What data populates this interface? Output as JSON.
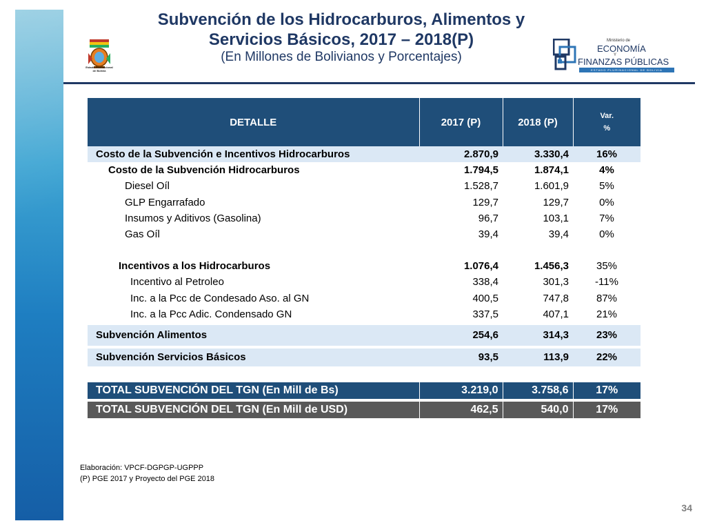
{
  "header": {
    "title_line1": "Subvención de los Hidrocarburos, Alimentos y",
    "title_line2": "Servicios Básicos, 2017 – 2018(P)",
    "subtitle": "(En Millones de Bolivianos y Porcentajes)",
    "emblem_caption": "Estado Plurinacional de Bolivia"
  },
  "logo": {
    "line1": "Ministerio de",
    "line2": "ECONOMÍA",
    "line3": "Y",
    "line4": "FINANZAS PÚBLICAS",
    "line5": "ESTADO PLURINACIONAL DE BOLIVIA"
  },
  "table": {
    "columns": [
      "DETALLE",
      "2017 (P)",
      "2018 (P)",
      "Var.",
      "%"
    ],
    "rows": [
      {
        "label": "Costo de la Subvención e Incentivos Hidrocarburos",
        "v2017": "2.870,9",
        "v2018": "3.330,4",
        "var": "16%"
      },
      {
        "label": "Costo de la Subvención Hidrocarburos",
        "v2017": "1.794,5",
        "v2018": "1.874,1",
        "var": "4%"
      },
      {
        "label": "Diesel Oíl",
        "v2017": "1.528,7",
        "v2018": "1.601,9",
        "var": "5%"
      },
      {
        "label": "GLP Engarrafado",
        "v2017": "129,7",
        "v2018": "129,7",
        "var": "0%"
      },
      {
        "label": "Insumos y Aditivos (Gasolina)",
        "v2017": "96,7",
        "v2018": "103,1",
        "var": "7%"
      },
      {
        "label": "Gas Oíl",
        "v2017": "39,4",
        "v2018": "39,4",
        "var": "0%"
      },
      {
        "label": "Incentivos a los Hidrocarburos",
        "v2017": "1.076,4",
        "v2018": "1.456,3",
        "var": "35%"
      },
      {
        "label": "Incentivo al Petroleo",
        "v2017": "338,4",
        "v2018": "301,3",
        "var": "-11%"
      },
      {
        "label": "Inc. a la Pcc de Condesado Aso. al GN",
        "v2017": "400,5",
        "v2018": "747,8",
        "var": "87%"
      },
      {
        "label": "Inc. a la Pcc Adic. Condensado GN",
        "v2017": "337,5",
        "v2018": "407,1",
        "var": "21%"
      },
      {
        "label": "Subvención Alimentos",
        "v2017": "254,6",
        "v2018": "314,3",
        "var": "23%"
      },
      {
        "label": "Subvención Servicios Básicos",
        "v2017": "93,5",
        "v2018": "113,9",
        "var": "22%"
      },
      {
        "label": "TOTAL SUBVENCIÓN DEL TGN (En Mill de Bs)",
        "v2017": "3.219,0",
        "v2018": "3.758,6",
        "var": "17%"
      },
      {
        "label": "TOTAL SUBVENCIÓN DEL TGN (En Mill de USD)",
        "v2017": "462,5",
        "v2018": "540,0",
        "var": "17%"
      }
    ]
  },
  "footer": {
    "source": "Elaboración: VPCF-DGPGP-UGPPP",
    "note": "(P) PGE 2017 y Proyecto del PGE 2018",
    "page_number": "34"
  },
  "colors": {
    "header_fill": "#1f4e79",
    "shade_fill": "#dbe8f5",
    "usd_fill": "#595959",
    "title_color": "#1f3864"
  }
}
